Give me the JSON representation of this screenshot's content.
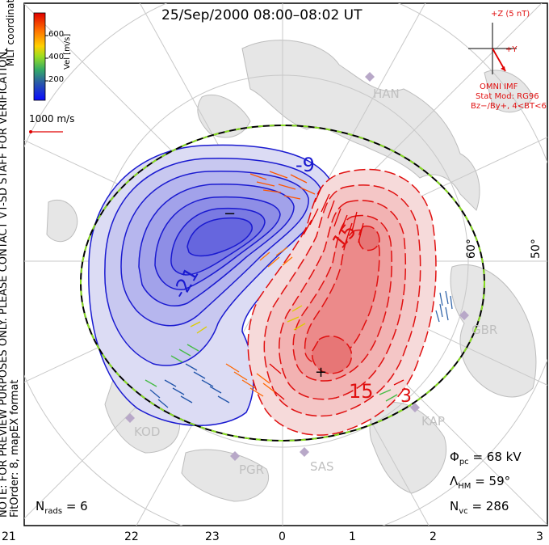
{
  "title": "25/Sep/2000 08:00–08:02 UT",
  "colorbar": {
    "label": "Vel [m/s]",
    "ticks": [
      "600",
      "400",
      "200"
    ],
    "colors": [
      "#e00000",
      "#ff6a00",
      "#ffb000",
      "#e6e600",
      "#88dd22",
      "#33bb55",
      "#2a7a8a",
      "#2244aa",
      "#0a0aff"
    ]
  },
  "coords_label": "MLT coordinates",
  "scale_vector": "1000 m/s",
  "note": [
    "NOTE: FOR PREVIEW PURPOSES ONLY. PLEASE CONTACT VT-SD STAFF FOR VERIFICATION.",
    "FitOrder: 8, mapEX format"
  ],
  "imf": {
    "z_label": "+Z (5 nT)",
    "y_label": "+Y",
    "source": "OMNI IMF",
    "model_lines": [
      "Stat Mod: RG96",
      "Bz−/By+, 4<BT<6"
    ]
  },
  "contour_labels": {
    "neg": [
      "-9",
      "-21"
    ],
    "pos": [
      "15",
      "15",
      "3"
    ],
    "min_marker": "−",
    "max_marker": "+"
  },
  "latitude_labels": [
    "60°",
    "50°"
  ],
  "radars": [
    "HAN",
    "GBR",
    "KAP",
    "SAS",
    "PGR",
    "KOD"
  ],
  "stats": {
    "phi_pc": {
      "symbol": "Φ",
      "sub": "pc",
      "value": "= 68 kV"
    },
    "lambda_hm": {
      "symbol": "Λ",
      "sub": "HM",
      "value": "= 59°"
    },
    "n_vc": {
      "symbol": "N",
      "sub": "vc",
      "value": "= 286"
    },
    "n_rads": {
      "symbol": "N",
      "sub": "rads",
      "value": "= 6"
    }
  },
  "mlt_axis": [
    "21",
    "22",
    "23",
    "0",
    "1",
    "2",
    "3"
  ]
}
